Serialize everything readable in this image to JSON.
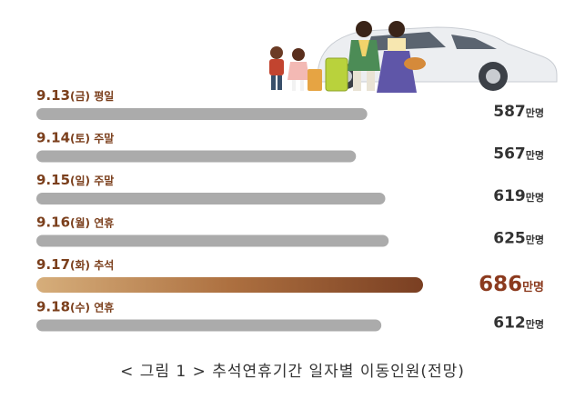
{
  "chart_data": {
    "type": "bar",
    "orientation": "horizontal",
    "unit": "만명",
    "categories": [
      "9.13(금) 평일",
      "9.14(토) 주말",
      "9.15(일) 주말",
      "9.16(월) 연휴",
      "9.17(화) 추석",
      "9.18(수) 연휴"
    ],
    "date_parts": [
      "9.13",
      "9.14",
      "9.15",
      "9.16",
      "9.17",
      "9.18"
    ],
    "day_parts": [
      "(금) 평일",
      "(토) 주말",
      "(일) 주말",
      "(월) 연휴",
      "(화) 추석",
      "(수) 연휴"
    ],
    "values": [
      587,
      567,
      619,
      625,
      686,
      612
    ],
    "highlight_index": 4,
    "grid": false,
    "legend": "none",
    "colors": {
      "label": "#7b3f1c",
      "bar": "#ababab",
      "value": "#333333",
      "highlight_value": "#8b3a1e",
      "highlight_gradient": [
        "#d6ae7b",
        "#ad7040",
        "#7a3f22"
      ]
    }
  },
  "caption": "< 그림 1 > 추석연휴기간 일자별 이동인원(전망)",
  "illustration": {
    "icon": "family-car-icon",
    "colors": {
      "car": "#ecedef",
      "suitcase_yellow": "#b9d23c",
      "suitcase_orange": "#e6a443",
      "hanbok_green": "#4c8c56",
      "hanbok_purple": "#5f56a8",
      "skirt_pink": "#f2c2b6"
    }
  }
}
